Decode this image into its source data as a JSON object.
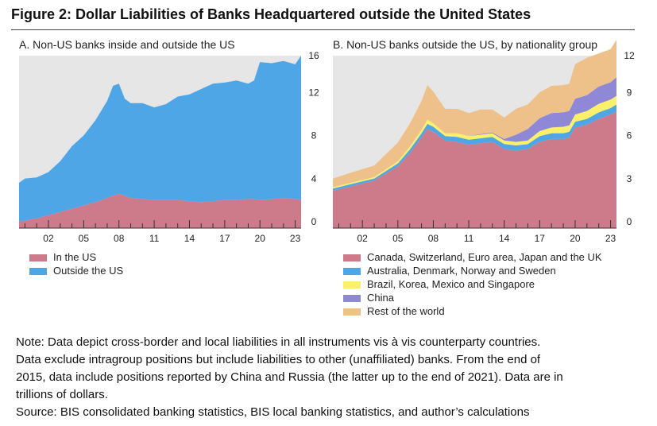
{
  "figure_title": "Figure 2: Dollar Liabilities of Banks Headquartered outside the United States",
  "chart_data": [
    {
      "type": "area",
      "stacked": true,
      "title": "A. Non-US banks inside and outside the US",
      "x_start": 1999.5,
      "x_end": 2023.5,
      "xticks": [
        2002,
        2005,
        2008,
        2011,
        2014,
        2017,
        2020,
        2023
      ],
      "xtick_labels": [
        "02",
        "05",
        "08",
        "11",
        "14",
        "17",
        "20",
        "23"
      ],
      "ylim": [
        0,
        16
      ],
      "yticks": [
        0,
        4,
        8,
        12,
        16
      ],
      "ytick_labels": [
        "0",
        "4",
        "8",
        "12",
        "16"
      ],
      "x": [
        1999.5,
        2000,
        2001,
        2002,
        2003,
        2004,
        2005,
        2006,
        2007,
        2007.5,
        2008,
        2008.5,
        2009,
        2010,
        2011,
        2012,
        2013,
        2014,
        2015,
        2016,
        2017,
        2018,
        2019,
        2019.5,
        2020,
        2021,
        2022,
        2023,
        2023.5
      ],
      "series": [
        {
          "name": "In the US",
          "color": "#cd7a8b",
          "values": [
            0.6,
            0.7,
            0.9,
            1.2,
            1.5,
            1.8,
            2.1,
            2.4,
            2.8,
            3.0,
            3.2,
            3.0,
            2.8,
            2.7,
            2.6,
            2.6,
            2.6,
            2.5,
            2.4,
            2.5,
            2.6,
            2.6,
            2.7,
            2.7,
            2.6,
            2.7,
            2.8,
            2.7,
            2.6
          ]
        },
        {
          "name": "Outside the US",
          "color": "#4fa6e6",
          "values": [
            3.6,
            3.9,
            3.8,
            4.0,
            4.7,
            5.8,
            6.5,
            7.6,
            9.0,
            10.2,
            10.2,
            9.0,
            8.8,
            8.9,
            8.6,
            8.9,
            9.6,
            9.9,
            10.5,
            10.9,
            10.9,
            11.1,
            10.7,
            11.0,
            12.8,
            12.6,
            12.7,
            12.5,
            13.4
          ]
        }
      ],
      "legend_position": "bottom-left",
      "grid": false
    },
    {
      "type": "area",
      "stacked": true,
      "title": "B. Non-US banks outside the US, by nationality group",
      "x_start": 1999.5,
      "x_end": 2023.5,
      "xticks": [
        2002,
        2005,
        2008,
        2011,
        2014,
        2017,
        2020,
        2023
      ],
      "xtick_labels": [
        "02",
        "05",
        "08",
        "11",
        "14",
        "17",
        "20",
        "23"
      ],
      "ylim": [
        0,
        12
      ],
      "yticks": [
        0,
        3,
        6,
        9,
        12
      ],
      "ytick_labels": [
        "0",
        "3",
        "6",
        "9",
        "12"
      ],
      "x": [
        1999.5,
        2001,
        2003,
        2005,
        2006,
        2007,
        2007.5,
        2008,
        2009,
        2010,
        2011,
        2012,
        2013,
        2014,
        2015,
        2016,
        2017,
        2018,
        2019,
        2019.5,
        2020,
        2021,
        2022,
        2023,
        2023.5
      ],
      "series": [
        {
          "name": "Canada, Switzerland, Euro area, Japan and the UK",
          "color": "#cd7a8b",
          "values": [
            2.6,
            2.9,
            3.3,
            4.3,
            5.2,
            6.3,
            6.9,
            6.7,
            6.1,
            6.0,
            5.8,
            5.9,
            6.0,
            5.5,
            5.4,
            5.5,
            6.0,
            6.2,
            6.2,
            6.3,
            7.0,
            7.2,
            7.6,
            7.9,
            8.1
          ]
        },
        {
          "name": "Australia, Denmark, Norway and Sweden",
          "color": "#4fa6e6",
          "values": [
            0.15,
            0.15,
            0.15,
            0.2,
            0.25,
            0.3,
            0.35,
            0.35,
            0.3,
            0.35,
            0.35,
            0.35,
            0.35,
            0.35,
            0.35,
            0.35,
            0.4,
            0.4,
            0.4,
            0.4,
            0.4,
            0.4,
            0.45,
            0.45,
            0.5
          ]
        },
        {
          "name": "Brazil, Korea, Mexico and Singapore",
          "color": "#fbf06a",
          "values": [
            0.1,
            0.1,
            0.1,
            0.15,
            0.2,
            0.25,
            0.3,
            0.25,
            0.2,
            0.25,
            0.25,
            0.25,
            0.25,
            0.25,
            0.25,
            0.25,
            0.35,
            0.4,
            0.45,
            0.45,
            0.5,
            0.55,
            0.6,
            0.6,
            0.6
          ]
        },
        {
          "name": "China",
          "color": "#8e88d6",
          "values": [
            0.0,
            0.0,
            0.0,
            0.0,
            0.0,
            0.0,
            0.0,
            0.0,
            0.0,
            0.0,
            0.0,
            0.05,
            0.05,
            0.1,
            0.5,
            0.8,
            0.9,
            1.0,
            1.0,
            1.0,
            1.1,
            1.1,
            1.2,
            1.2,
            1.3
          ]
        },
        {
          "name": "Rest of the world",
          "color": "#eec18a",
          "values": [
            0.6,
            0.7,
            0.8,
            1.3,
            1.6,
            2.0,
            2.4,
            2.2,
            1.7,
            1.7,
            1.6,
            1.7,
            1.6,
            1.5,
            1.8,
            1.7,
            1.8,
            1.9,
            1.9,
            1.9,
            2.4,
            2.6,
            2.3,
            2.3,
            2.6
          ]
        }
      ],
      "legend_position": "bottom-left",
      "grid": false
    }
  ],
  "note": {
    "line1": "Note: Data depict cross-border and local liabilities in all instruments vis à vis counterparty countries.",
    "line2": "Data exclude intragroup positions but include liabilities to other (unaffiliated) banks. From the end of",
    "line3": "2015, data include positions reported by China and Russia (the latter up to the end of 2021). Data are in",
    "line4": "trillions of dollars.",
    "source": "Source: BIS consolidated banking statistics, BIS local banking statistics, and author’s calculations"
  }
}
